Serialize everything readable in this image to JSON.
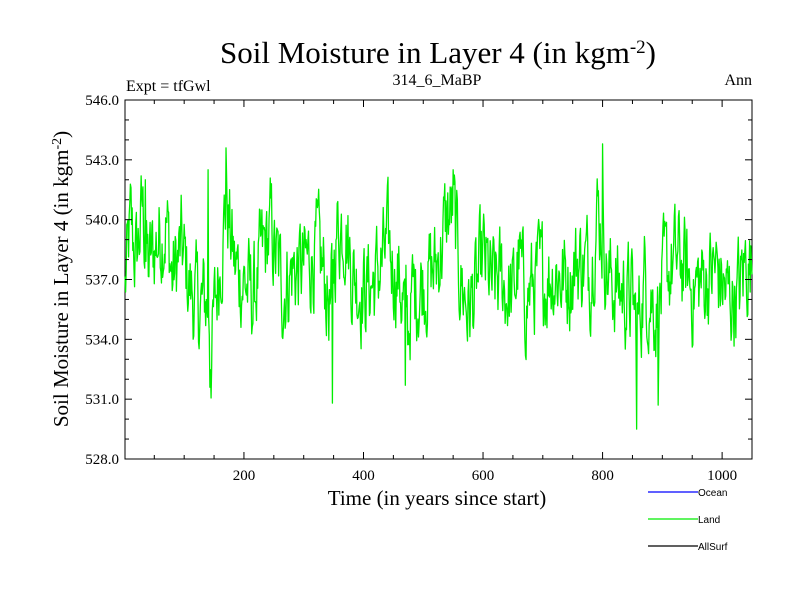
{
  "chart_data": {
    "type": "line",
    "title": "Soil Moisture in Layer 4 (in kgm",
    "title_sup": "-2",
    "title_end": ")",
    "subtitle_left": "Expt = tfGwl",
    "subtitle_center": "314_6_MaBP",
    "subtitle_right": "Ann",
    "xlabel": "Time (in years since start)",
    "ylabel": "Soil Moisture in Layer 4 (in kgm",
    "ylabel_sup": "-2",
    "ylabel_end": ")",
    "xlim": [
      1,
      1050
    ],
    "ylim": [
      528.0,
      546.0
    ],
    "xticks": [
      200,
      400,
      600,
      800,
      1000
    ],
    "xtick_labels": [
      "200",
      "400",
      "600",
      "800",
      "1000"
    ],
    "yticks": [
      528.0,
      531.0,
      534.0,
      537.0,
      540.0,
      543.0,
      546.0
    ],
    "ytick_labels": [
      "528.0",
      "531.0",
      "534.0",
      "537.0",
      "540.0",
      "543.0",
      "546.0"
    ],
    "legend": [
      {
        "name": "Ocean",
        "color": "#0000ff"
      },
      {
        "name": "Land",
        "color": "#00ee00"
      },
      {
        "name": "AllSurf",
        "color": "#000000"
      }
    ],
    "series": [
      {
        "name": "Land",
        "color": "#00ee00",
        "anchors_x": [
          1,
          10,
          20,
          30,
          40,
          55,
          70,
          80,
          95,
          110,
          125,
          140,
          145,
          160,
          170,
          185,
          200,
          215,
          230,
          245,
          250,
          265,
          280,
          300,
          320,
          335,
          345,
          355,
          370,
          380,
          400,
          420,
          440,
          460,
          475,
          480,
          500,
          520,
          540,
          550,
          560,
          575,
          590,
          600,
          615,
          630,
          650,
          660,
          670,
          690,
          700,
          720,
          740,
          760,
          780,
          790,
          800,
          810,
          830,
          850,
          857,
          870,
          890,
          910,
          930,
          950,
          970,
          990,
          1010,
          1030,
          1040,
          1050
        ],
        "anchors_y": [
          536.5,
          539.5,
          538.0,
          540.5,
          537.5,
          539.0,
          540.0,
          537.0,
          538.5,
          536.5,
          535.5,
          536.0,
          533.5,
          538.0,
          541.0,
          537.5,
          537.0,
          536.0,
          538.0,
          539.5,
          538.5,
          536.5,
          537.5,
          537.5,
          538.5,
          537.0,
          535.5,
          539.5,
          540.0,
          537.5,
          536.5,
          537.0,
          538.5,
          537.0,
          534.5,
          536.0,
          537.0,
          537.5,
          540.0,
          540.5,
          537.5,
          535.5,
          536.5,
          538.0,
          536.5,
          537.0,
          536.0,
          538.0,
          536.0,
          537.0,
          537.0,
          537.5,
          537.0,
          538.0,
          537.5,
          540.5,
          539.5,
          537.0,
          536.5,
          536.0,
          534.5,
          537.0,
          535.5,
          537.5,
          538.0,
          536.5,
          537.0,
          537.5,
          536.0,
          536.5,
          538.0,
          537.5
        ]
      }
    ]
  }
}
